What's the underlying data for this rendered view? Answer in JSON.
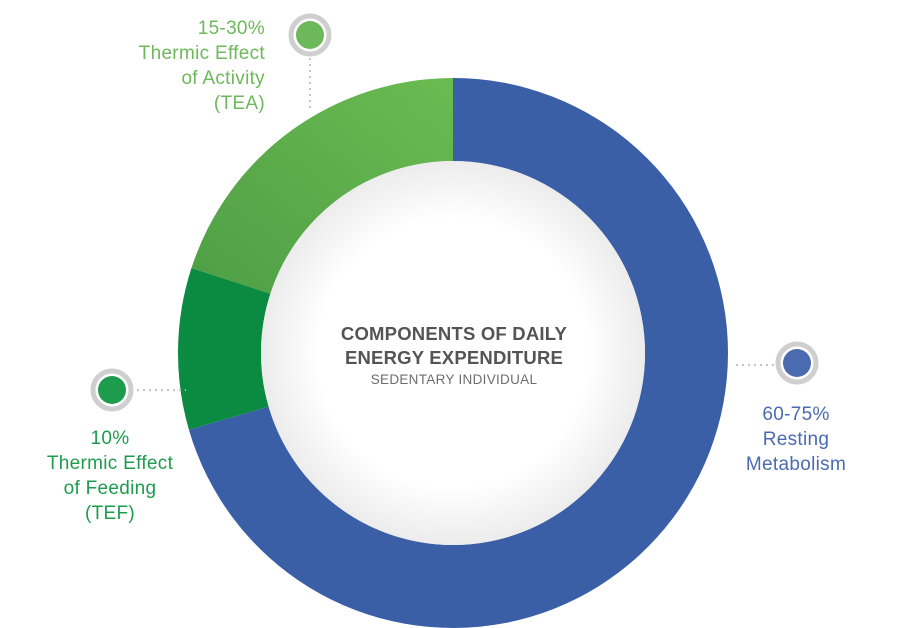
{
  "chart_data": {
    "type": "pie",
    "variant": "donut",
    "title": "COMPONENTS OF DAILY ENERGY EXPENDITURE",
    "subtitle": "SEDENTARY INDIVIDUAL",
    "start_angle_deg": 0,
    "direction": "clockwise",
    "slices": [
      {
        "label": [
          "60-75%",
          "Resting",
          "Metabolism"
        ],
        "range": "60-75%",
        "share": 0.705,
        "color": "#3B5FA6",
        "text_color": "#4A6BB0",
        "marker": "marker-rm"
      },
      {
        "label": [
          "10%",
          "Thermic Effect",
          "of Feeding",
          "(TEF)"
        ],
        "range": "10%",
        "share": 0.095,
        "color": "#0B8A41",
        "text_color": "#1E9C4E",
        "marker": "marker-tef"
      },
      {
        "label": [
          "15-30%",
          "Thermic Effect",
          "of Activity",
          "(TEA)"
        ],
        "range": "15-30%",
        "share": 0.2,
        "color": "#5DB14C",
        "text_color": "#6DB85A",
        "marker": "marker-tea"
      }
    ]
  }
}
